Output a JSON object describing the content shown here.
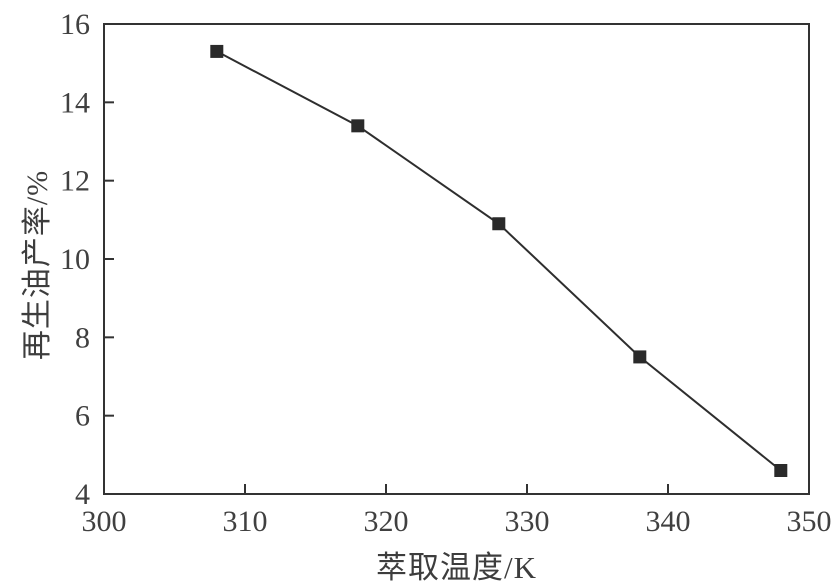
{
  "chart_data": {
    "type": "line",
    "title": "",
    "xlabel": "萃取温度/K",
    "ylabel": "再生油产率/%",
    "x": [
      308,
      318,
      328,
      338,
      348
    ],
    "y": [
      15.3,
      13.4,
      10.9,
      7.5,
      4.6
    ],
    "xlim": [
      300,
      350
    ],
    "ylim": [
      4,
      16
    ],
    "x_ticks": [
      300,
      310,
      320,
      330,
      340,
      350
    ],
    "y_ticks": [
      4,
      6,
      8,
      10,
      12,
      14,
      16
    ],
    "grid": false,
    "legend": "none",
    "marker": "filled-square",
    "colors": {
      "line": "#2e2e2e",
      "marker": "#2a2a2a",
      "axis": "#333333",
      "text": "#404040"
    }
  }
}
